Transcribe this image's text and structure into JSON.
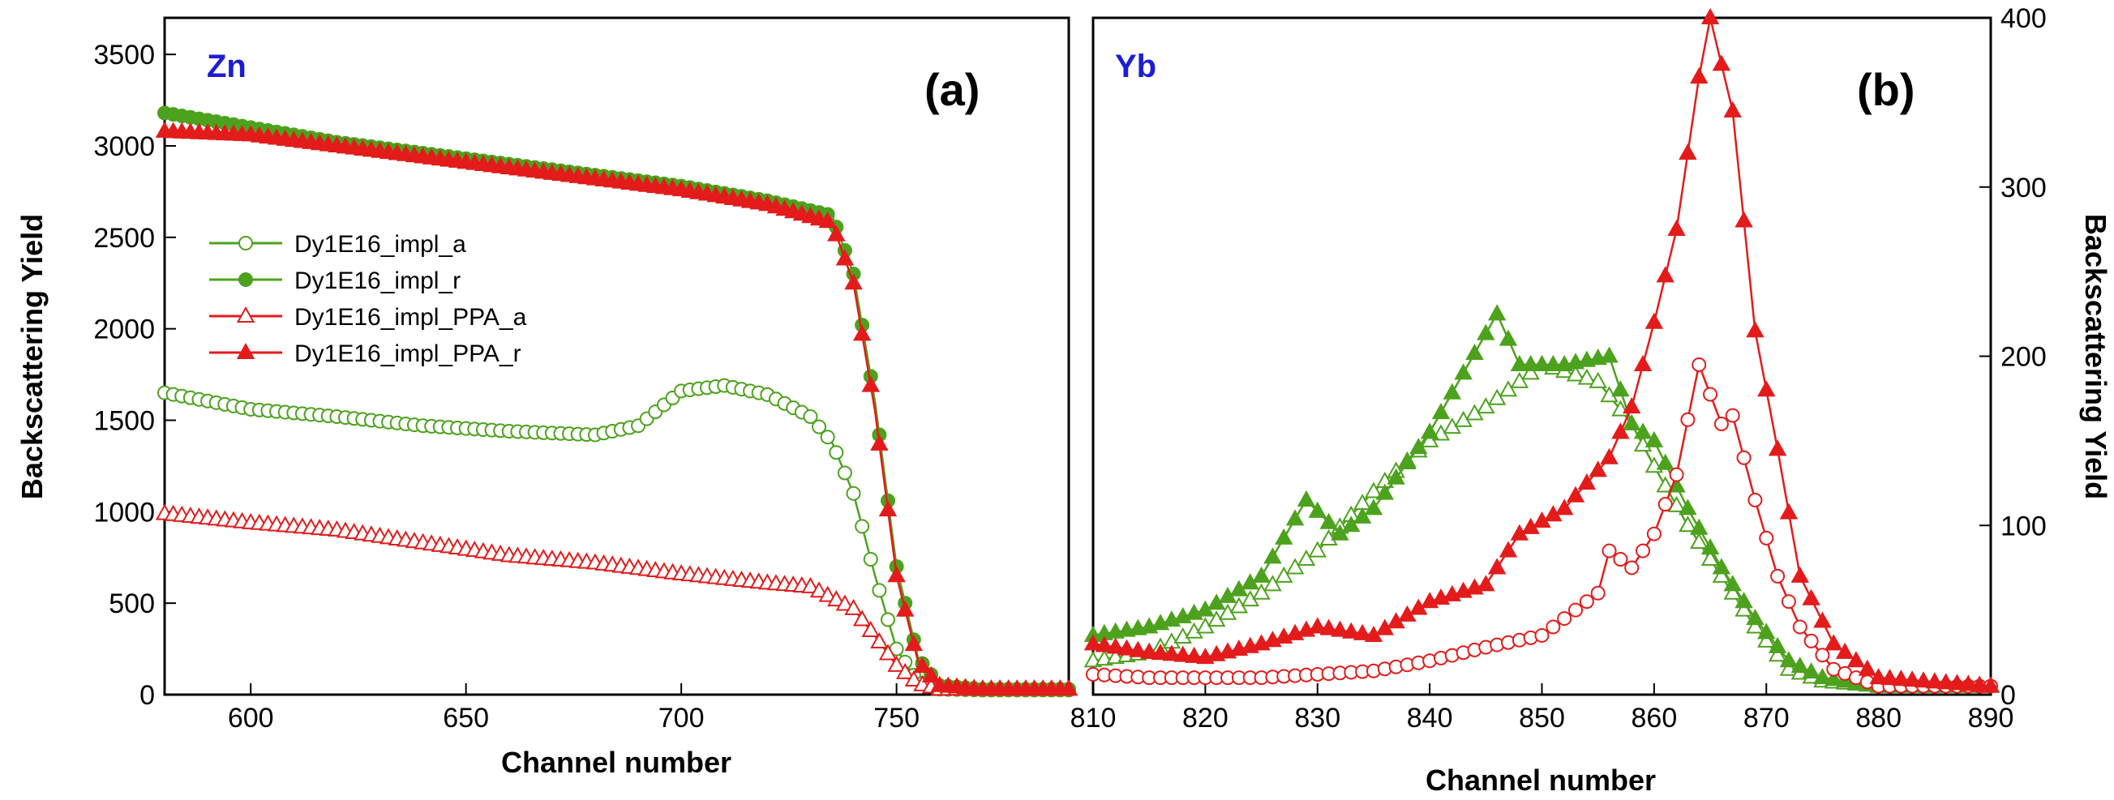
{
  "chart_data": [
    {
      "type": "line",
      "panel_label": "(a)",
      "element_label": "Zn",
      "xlabel": "Channel number",
      "ylabel": "Backscattering Yield",
      "xlim": [
        580,
        790
      ],
      "ylim": [
        0,
        3700
      ],
      "xticks": [
        600,
        650,
        700,
        750
      ],
      "yticks": [
        0,
        500,
        1000,
        1500,
        2000,
        2500,
        3000,
        3500
      ],
      "legend_position": "center-left",
      "colors": {
        "green": "#4ca21d",
        "red": "#e41b1b"
      },
      "series": [
        {
          "name": "Dy1E16_impl_a",
          "color": "#4ca21d",
          "marker": "circle",
          "filled": false,
          "points": [
            [
              580,
              1650
            ],
            [
              600,
              1560
            ],
            [
              620,
              1520
            ],
            [
              640,
              1470
            ],
            [
              660,
              1440
            ],
            [
              680,
              1420
            ],
            [
              690,
              1470
            ],
            [
              700,
              1660
            ],
            [
              710,
              1690
            ],
            [
              720,
              1640
            ],
            [
              730,
              1520
            ],
            [
              735,
              1380
            ],
            [
              740,
              1100
            ],
            [
              745,
              650
            ],
            [
              750,
              250
            ],
            [
              755,
              70
            ],
            [
              760,
              30
            ],
            [
              770,
              25
            ],
            [
              790,
              25
            ]
          ]
        },
        {
          "name": "Dy1E16_impl_r",
          "color": "#4ca21d",
          "marker": "circle",
          "filled": true,
          "points": [
            [
              580,
              3180
            ],
            [
              600,
              3100
            ],
            [
              620,
              3020
            ],
            [
              640,
              2960
            ],
            [
              660,
              2900
            ],
            [
              680,
              2840
            ],
            [
              700,
              2780
            ],
            [
              720,
              2700
            ],
            [
              735,
              2620
            ],
            [
              740,
              2300
            ],
            [
              745,
              1600
            ],
            [
              750,
              700
            ],
            [
              755,
              200
            ],
            [
              760,
              50
            ],
            [
              770,
              30
            ],
            [
              790,
              30
            ]
          ]
        },
        {
          "name": "Dy1E16_impl_PPA_a",
          "color": "#e41b1b",
          "marker": "triangle",
          "filled": false,
          "points": [
            [
              580,
              990
            ],
            [
              600,
              940
            ],
            [
              620,
              900
            ],
            [
              640,
              830
            ],
            [
              660,
              760
            ],
            [
              680,
              720
            ],
            [
              700,
              660
            ],
            [
              720,
              610
            ],
            [
              730,
              590
            ],
            [
              740,
              470
            ],
            [
              745,
              320
            ],
            [
              750,
              160
            ],
            [
              755,
              60
            ],
            [
              760,
              30
            ],
            [
              790,
              30
            ]
          ]
        },
        {
          "name": "Dy1E16_impl_PPA_r",
          "color": "#e41b1b",
          "marker": "triangle",
          "filled": true,
          "points": [
            [
              580,
              3080
            ],
            [
              600,
              3060
            ],
            [
              620,
              3000
            ],
            [
              640,
              2940
            ],
            [
              660,
              2880
            ],
            [
              680,
              2820
            ],
            [
              700,
              2760
            ],
            [
              720,
              2680
            ],
            [
              735,
              2580
            ],
            [
              740,
              2250
            ],
            [
              745,
              1550
            ],
            [
              750,
              650
            ],
            [
              755,
              180
            ],
            [
              760,
              50
            ],
            [
              770,
              30
            ],
            [
              790,
              30
            ]
          ]
        }
      ]
    },
    {
      "type": "line",
      "panel_label": "(b)",
      "element_label": "Yb",
      "xlabel": "Channel number",
      "ylabel": "Backscattering Yield",
      "xlim": [
        810,
        890
      ],
      "ylim": [
        0,
        400
      ],
      "xticks": [
        810,
        820,
        830,
        840,
        850,
        860,
        870,
        880,
        890
      ],
      "yticks": [
        0,
        100,
        200,
        300,
        400
      ],
      "colors": {
        "green": "#4ca21d",
        "red": "#e41b1b"
      },
      "series": [
        {
          "name": "Dy1E16_impl_a",
          "color": "#4ca21d",
          "marker": "triangle",
          "filled": false,
          "points": [
            [
              810,
              20
            ],
            [
              815,
              25
            ],
            [
              820,
              40
            ],
            [
              825,
              60
            ],
            [
              830,
              85
            ],
            [
              835,
              120
            ],
            [
              840,
              150
            ],
            [
              845,
              170
            ],
            [
              850,
              195
            ],
            [
              855,
              185
            ],
            [
              858,
              160
            ],
            [
              860,
              135
            ],
            [
              863,
              100
            ],
            [
              866,
              70
            ],
            [
              869,
              40
            ],
            [
              872,
              15
            ],
            [
              875,
              8
            ],
            [
              880,
              5
            ],
            [
              890,
              5
            ]
          ]
        },
        {
          "name": "Dy1E16_impl_r",
          "color": "#4ca21d",
          "marker": "triangle",
          "filled": true,
          "points": [
            [
              810,
              35
            ],
            [
              815,
              40
            ],
            [
              820,
              50
            ],
            [
              825,
              70
            ],
            [
              829,
              115
            ],
            [
              832,
              95
            ],
            [
              835,
              110
            ],
            [
              840,
              155
            ],
            [
              846,
              225
            ],
            [
              848,
              195
            ],
            [
              852,
              195
            ],
            [
              856,
              200
            ],
            [
              858,
              160
            ],
            [
              860,
              150
            ],
            [
              863,
              110
            ],
            [
              866,
              75
            ],
            [
              869,
              45
            ],
            [
              872,
              20
            ],
            [
              875,
              10
            ],
            [
              880,
              5
            ],
            [
              890,
              5
            ]
          ]
        },
        {
          "name": "Dy1E16_impl_PPA_a",
          "color": "#e41b1b",
          "marker": "circle",
          "filled": false,
          "points": [
            [
              810,
              12
            ],
            [
              815,
              10
            ],
            [
              820,
              10
            ],
            [
              825,
              10
            ],
            [
              830,
              12
            ],
            [
              835,
              14
            ],
            [
              840,
              20
            ],
            [
              845,
              28
            ],
            [
              850,
              35
            ],
            [
              855,
              60
            ],
            [
              856,
              85
            ],
            [
              858,
              75
            ],
            [
              860,
              95
            ],
            [
              862,
              130
            ],
            [
              864,
              195
            ],
            [
              866,
              160
            ],
            [
              867,
              165
            ],
            [
              869,
              115
            ],
            [
              871,
              70
            ],
            [
              873,
              40
            ],
            [
              876,
              15
            ],
            [
              880,
              5
            ],
            [
              890,
              5
            ]
          ]
        },
        {
          "name": "Dy1E16_impl_PPA_r",
          "color": "#e41b1b",
          "marker": "triangle",
          "filled": true,
          "points": [
            [
              810,
              30
            ],
            [
              815,
              25
            ],
            [
              820,
              22
            ],
            [
              825,
              30
            ],
            [
              830,
              40
            ],
            [
              835,
              35
            ],
            [
              840,
              55
            ],
            [
              845,
              65
            ],
            [
              848,
              95
            ],
            [
              852,
              110
            ],
            [
              856,
              140
            ],
            [
              858,
              170
            ],
            [
              860,
              220
            ],
            [
              862,
              275
            ],
            [
              864,
              365
            ],
            [
              865,
              400
            ],
            [
              867,
              345
            ],
            [
              869,
              215
            ],
            [
              871,
              145
            ],
            [
              873,
              70
            ],
            [
              876,
              30
            ],
            [
              880,
              10
            ],
            [
              884,
              8
            ],
            [
              890,
              5
            ]
          ]
        }
      ]
    }
  ]
}
